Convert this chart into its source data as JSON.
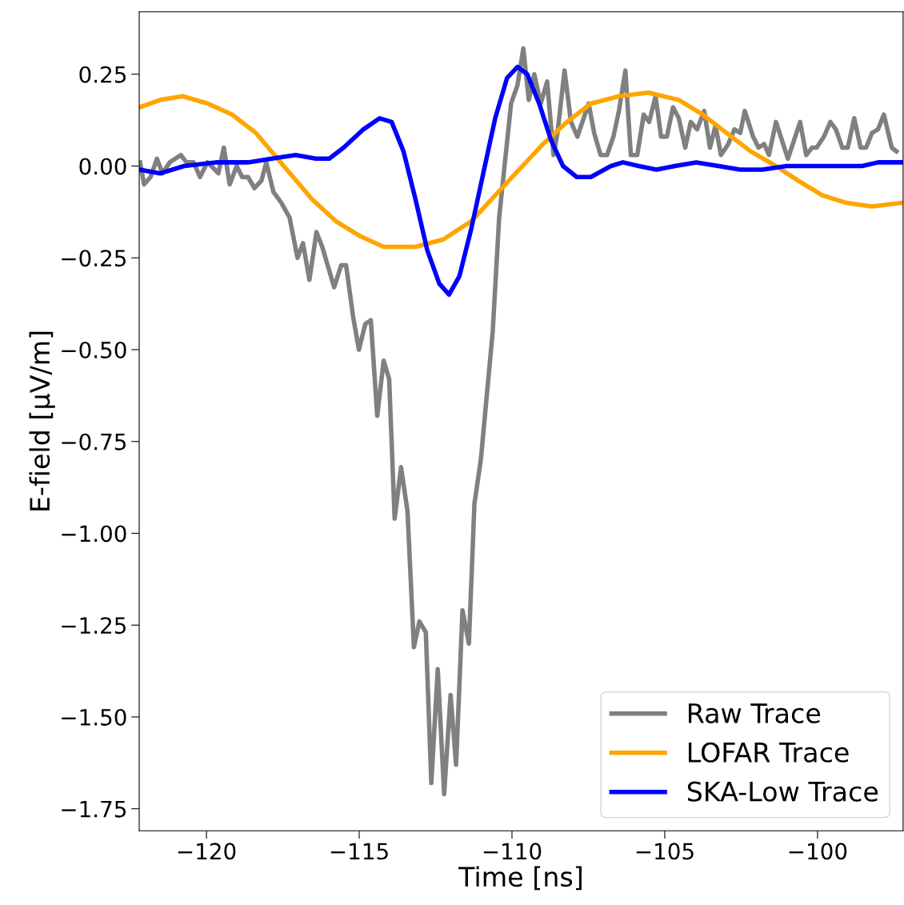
{
  "chart_data": {
    "type": "line",
    "xlabel": "Time [ns]",
    "ylabel": "E-field [µV/m]",
    "xlim": [
      -122.2,
      -97.2
    ],
    "ylim": [
      -1.81,
      0.42
    ],
    "xticks": [
      {
        "value": -120,
        "label": "−120"
      },
      {
        "value": -115,
        "label": "−115"
      },
      {
        "value": -110,
        "label": "−110"
      },
      {
        "value": -105,
        "label": "−105"
      },
      {
        "value": -100,
        "label": "−100"
      }
    ],
    "yticks": [
      {
        "value": 0.25,
        "label": "0.25"
      },
      {
        "value": 0,
        "label": "0.00"
      },
      {
        "value": -0.25,
        "label": "−0.25"
      },
      {
        "value": -0.5,
        "label": "−0.50"
      },
      {
        "value": -0.75,
        "label": "−0.75"
      },
      {
        "value": -1,
        "label": "−1.00"
      },
      {
        "value": -1.25,
        "label": "−1.25"
      },
      {
        "value": -1.5,
        "label": "−1.50"
      },
      {
        "value": -1.75,
        "label": "−1.75"
      }
    ],
    "grid": false,
    "legend": "bottom right",
    "marker": "none",
    "line_style": "solid",
    "series": [
      {
        "name": "Raw Trace",
        "color": "#808080",
        "x": [
          -122.17,
          -122.04,
          -121.83,
          -121.62,
          -121.44,
          -121.2,
          -120.84,
          -120.65,
          -120.42,
          -120.21,
          -119.97,
          -119.84,
          -119.61,
          -119.43,
          -119.24,
          -119.01,
          -118.83,
          -118.64,
          -118.43,
          -118.2,
          -118.04,
          -117.81,
          -117.55,
          -117.28,
          -117.02,
          -116.84,
          -116.63,
          -116.4,
          -116.21,
          -115.82,
          -115.59,
          -115.43,
          -115.2,
          -115.01,
          -114.8,
          -114.62,
          -114.41,
          -114.2,
          -114.02,
          -113.84,
          -113.63,
          -113.42,
          -113.21,
          -113.03,
          -112.82,
          -112.64,
          -112.43,
          -112.22,
          -112.01,
          -111.83,
          -111.62,
          -111.41,
          -111.23,
          -111.02,
          -110.63,
          -110.42,
          -110.03,
          -109.82,
          -109.63,
          -109.45,
          -109.27,
          -109.06,
          -108.85,
          -108.64,
          -108.51,
          -108.28,
          -108.07,
          -107.86,
          -107.49,
          -107.31,
          -107.1,
          -106.89,
          -106.68,
          -106.5,
          -106.29,
          -106.11,
          -105.9,
          -105.69,
          -105.51,
          -105.3,
          -105.12,
          -104.93,
          -104.73,
          -104.54,
          -104.33,
          -104.15,
          -103.94,
          -103.71,
          -103.52,
          -103.34,
          -103.16,
          -102.92,
          -102.72,
          -102.53,
          -102.38,
          -102.11,
          -101.93,
          -101.75,
          -101.59,
          -101.36,
          -100.97,
          -100.57,
          -100.37,
          -100.18,
          -100.03,
          -99.79,
          -99.58,
          -99.4,
          -99.19,
          -99.01,
          -98.8,
          -98.59,
          -98.41,
          -98.22,
          -98.02,
          -97.83,
          -97.57,
          -97.42
        ],
        "values": [
          0.01,
          -0.05,
          -0.03,
          0.02,
          -0.02,
          0.01,
          0.03,
          0.01,
          0.01,
          -0.03,
          0.01,
          0.0,
          -0.02,
          0.05,
          -0.05,
          0.0,
          -0.03,
          -0.03,
          -0.06,
          -0.04,
          0.01,
          -0.07,
          -0.1,
          -0.14,
          -0.25,
          -0.21,
          -0.31,
          -0.18,
          -0.22,
          -0.33,
          -0.27,
          -0.27,
          -0.41,
          -0.5,
          -0.43,
          -0.42,
          -0.68,
          -0.53,
          -0.58,
          -0.96,
          -0.82,
          -0.94,
          -1.31,
          -1.24,
          -1.27,
          -1.68,
          -1.37,
          -1.71,
          -1.44,
          -1.63,
          -1.21,
          -1.3,
          -0.92,
          -0.8,
          -0.45,
          -0.14,
          0.17,
          0.22,
          0.32,
          0.18,
          0.25,
          0.17,
          0.23,
          0.03,
          0.09,
          0.26,
          0.12,
          0.08,
          0.17,
          0.09,
          0.03,
          0.03,
          0.08,
          0.15,
          0.26,
          0.03,
          0.03,
          0.14,
          0.12,
          0.19,
          0.08,
          0.08,
          0.16,
          0.13,
          0.05,
          0.12,
          0.1,
          0.15,
          0.05,
          0.11,
          0.03,
          0.06,
          0.1,
          0.09,
          0.15,
          0.08,
          0.05,
          0.06,
          0.03,
          0.12,
          0.02,
          0.12,
          0.03,
          0.05,
          0.05,
          0.08,
          0.12,
          0.1,
          0.05,
          0.05,
          0.13,
          0.05,
          0.05,
          0.09,
          0.1,
          0.14,
          0.05,
          0.04
        ]
      },
      {
        "name": "LOFAR Trace",
        "color": "#ffa500",
        "x": [
          -122.19,
          -121.51,
          -120.78,
          -119.95,
          -119.16,
          -118.38,
          -117.47,
          -116.55,
          -115.77,
          -114.99,
          -114.2,
          -113.16,
          -112.25,
          -111.33,
          -110.55,
          -109.77,
          -108.98,
          -108.2,
          -107.42,
          -106.5,
          -105.54,
          -104.54,
          -103.76,
          -102.98,
          -102.19,
          -101.36,
          -100.63,
          -99.84,
          -99.06,
          -98.22,
          -97.23
        ],
        "values": [
          0.16,
          0.18,
          0.19,
          0.17,
          0.14,
          0.09,
          0.0,
          -0.09,
          -0.15,
          -0.19,
          -0.22,
          -0.22,
          -0.2,
          -0.15,
          -0.08,
          -0.01,
          0.06,
          0.12,
          0.17,
          0.19,
          0.2,
          0.18,
          0.14,
          0.09,
          0.04,
          0.0,
          -0.04,
          -0.08,
          -0.1,
          -0.11,
          -0.1
        ]
      },
      {
        "name": "SKA-Low Trace",
        "color": "#0000ff",
        "x": [
          -122.19,
          -121.51,
          -120.73,
          -119.69,
          -118.64,
          -117.86,
          -117.08,
          -116.42,
          -115.98,
          -115.51,
          -114.86,
          -114.33,
          -113.94,
          -113.55,
          -113.16,
          -112.77,
          -112.38,
          -112.06,
          -111.72,
          -111.33,
          -110.94,
          -110.55,
          -110.16,
          -109.82,
          -109.5,
          -109.11,
          -108.72,
          -108.33,
          -107.88,
          -107.42,
          -106.76,
          -106.37,
          -105.85,
          -105.27,
          -104.67,
          -103.97,
          -103.24,
          -102.53,
          -101.8,
          -101.02,
          -100.23,
          -99.37,
          -98.54,
          -98.02,
          -97.23
        ],
        "values": [
          -0.01,
          -0.02,
          0.0,
          0.01,
          0.01,
          0.02,
          0.03,
          0.02,
          0.02,
          0.05,
          0.1,
          0.13,
          0.12,
          0.04,
          -0.09,
          -0.23,
          -0.32,
          -0.35,
          -0.3,
          -0.17,
          -0.02,
          0.13,
          0.24,
          0.27,
          0.25,
          0.17,
          0.07,
          0.0,
          -0.03,
          -0.03,
          0.0,
          0.01,
          0.0,
          -0.01,
          0.0,
          0.01,
          0.0,
          -0.01,
          -0.01,
          0.0,
          0.0,
          0.0,
          0.0,
          0.01,
          0.01
        ]
      }
    ]
  }
}
